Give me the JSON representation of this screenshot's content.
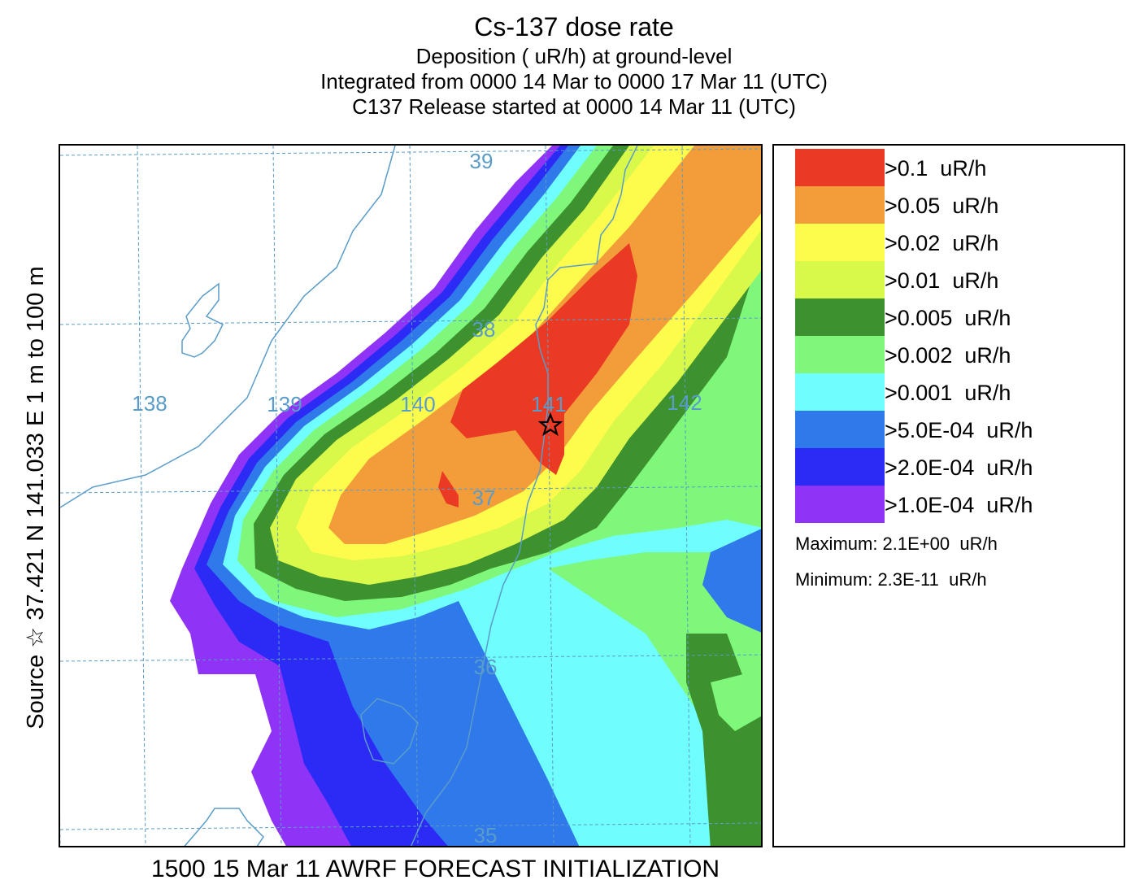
{
  "header": {
    "title": "Cs-137 dose rate",
    "line1": "Deposition  ( uR/h) at ground-level",
    "line2": "Integrated from 0000 14 Mar to 0000 17 Mar 11 (UTC)",
    "line3": "C137 Release started at 0000 14 Mar 11 (UTC)"
  },
  "side_label": "Source ☆ 37.421  N 141.033  E      1 m to   100 m",
  "footer": "1500 15 Mar 11 AWRF FORECAST INITIALIZATION",
  "map": {
    "lon_labels": [
      "138",
      "139",
      "140",
      "141",
      "142"
    ],
    "lat_labels": [
      "39",
      "38",
      "37",
      "36",
      "35"
    ],
    "grid_color": "#5a9cc9",
    "coast_color": "#5a9cc9",
    "source_marker": "star-icon",
    "source": {
      "lat": 37.421,
      "lon": 141.033
    }
  },
  "legend": {
    "items": [
      {
        "label": ">0.1  uR/h",
        "color": "#ea3a24"
      },
      {
        "label": ">0.05  uR/h",
        "color": "#f29c3a"
      },
      {
        "label": ">0.02  uR/h",
        "color": "#fdfb4b"
      },
      {
        "label": ">0.01  uR/h",
        "color": "#d9f94a"
      },
      {
        "label": ">0.005  uR/h",
        "color": "#3d922f"
      },
      {
        "label": ">0.002  uR/h",
        "color": "#7ef77a"
      },
      {
        "label": ">0.001  uR/h",
        "color": "#6ffdfd"
      },
      {
        "label": ">5.0E-04  uR/h",
        "color": "#2f79ea"
      },
      {
        "label": ">2.0E-04  uR/h",
        "color": "#2b2bf5"
      },
      {
        "label": ">1.0E-04  uR/h",
        "color": "#8f33f6"
      }
    ],
    "maximum": "Maximum: 2.1E+00  uR/h",
    "minimum": "Minimum: 2.3E-11  uR/h"
  }
}
